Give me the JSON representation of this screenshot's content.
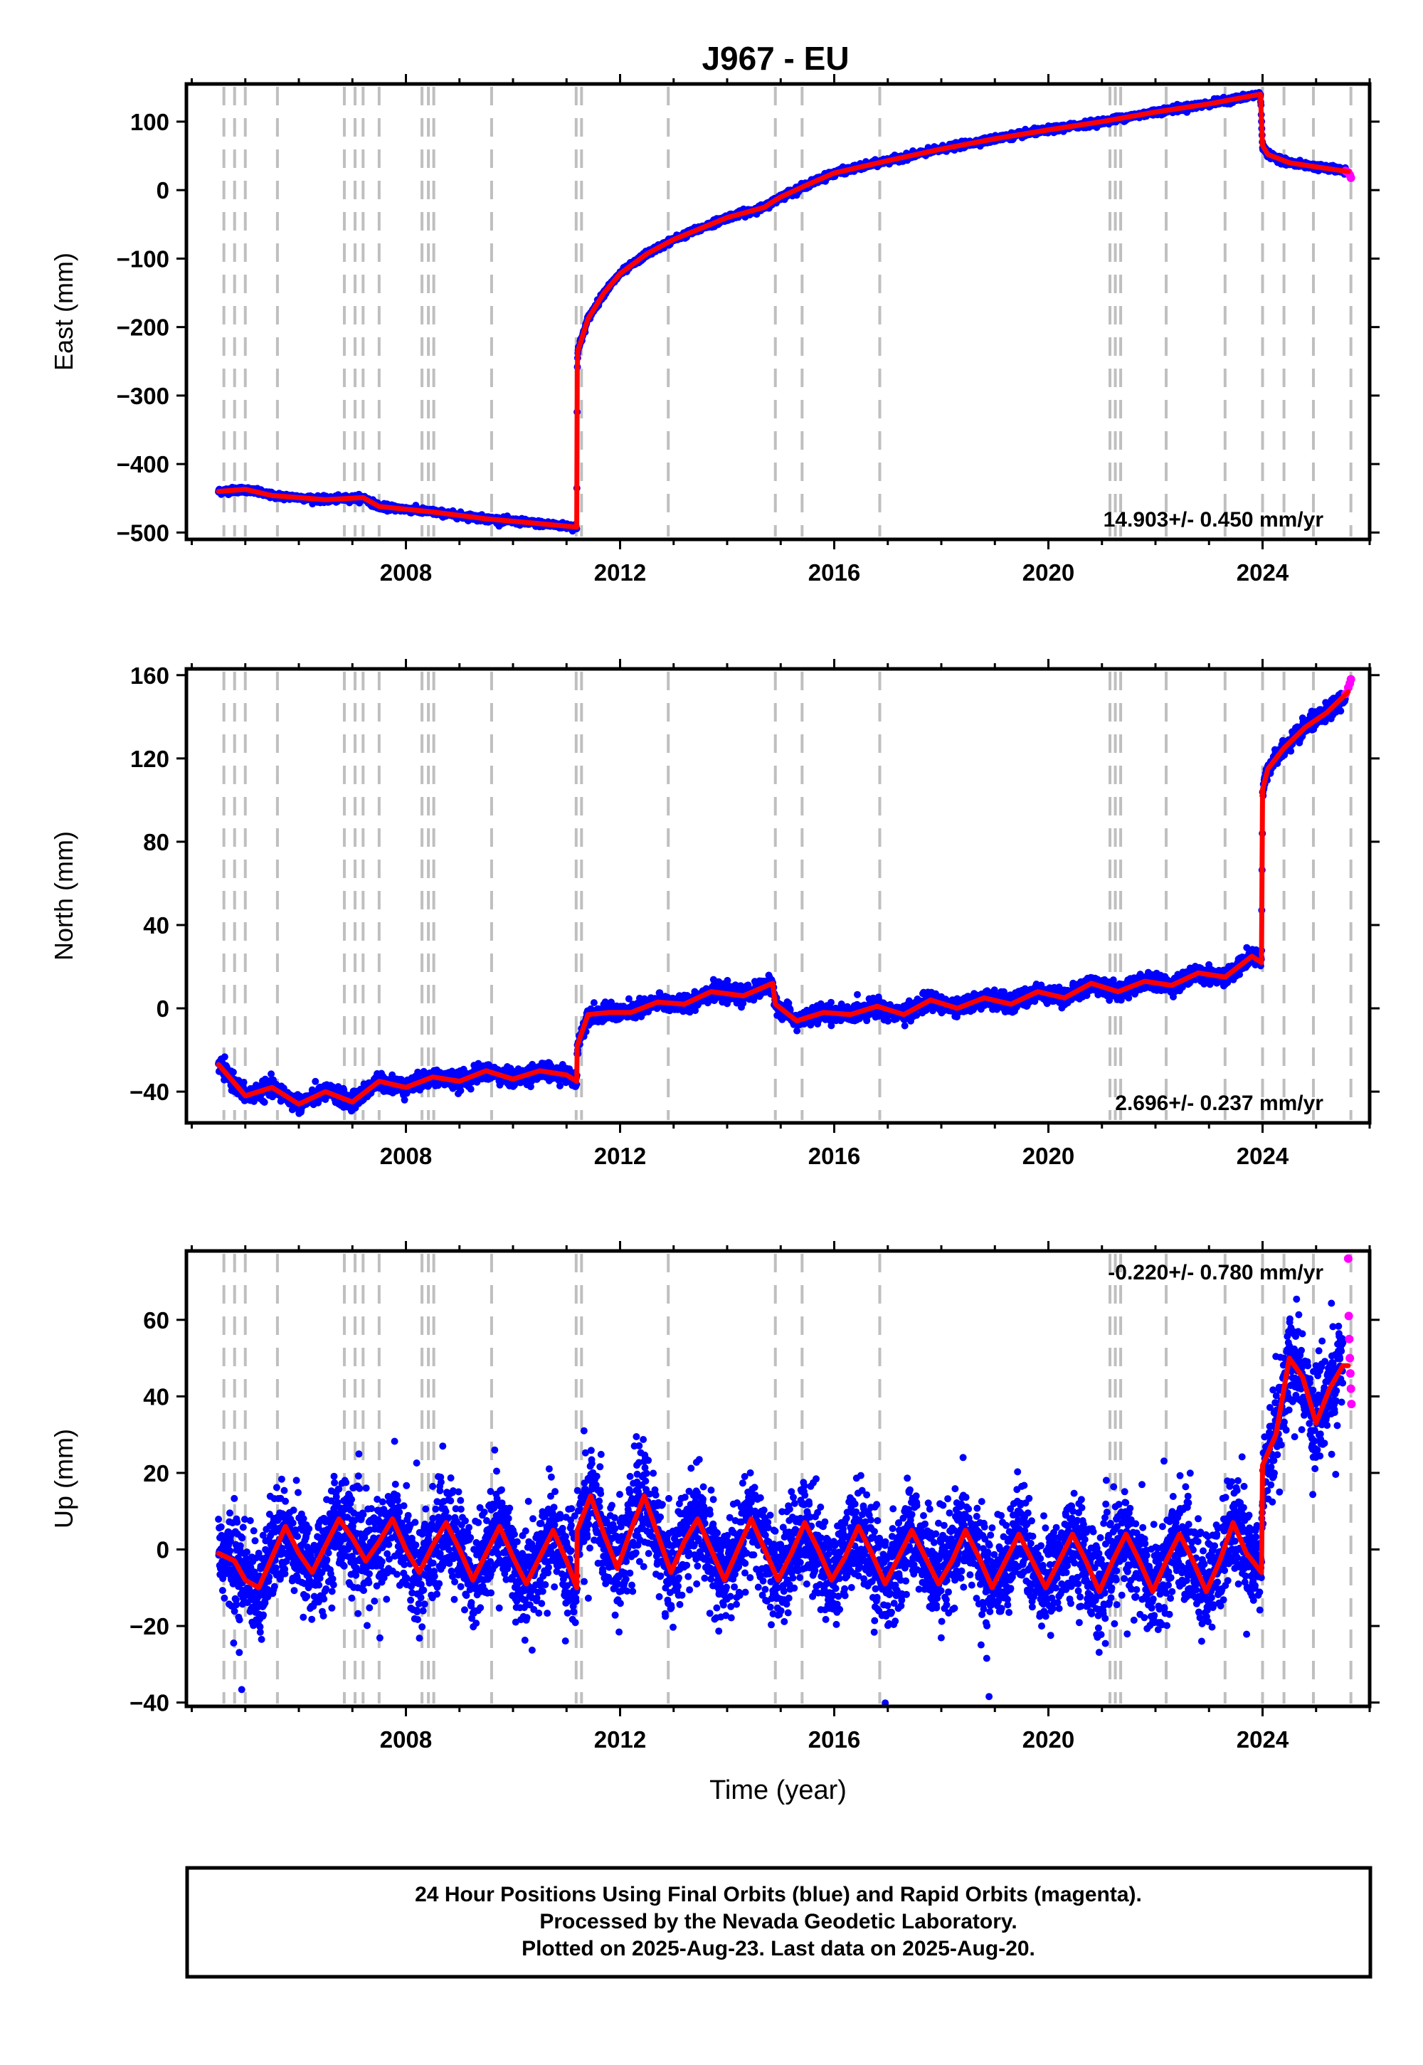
{
  "colors": {
    "final": "#0000ff",
    "rapid": "#ff00ff",
    "model": "#ff0000",
    "event_line": "#bfbfbf",
    "frame": "#000000"
  },
  "footer": {
    "line1": "24 Hour Positions Using Final Orbits (blue) and Rapid Orbits (magenta).",
    "line2": "Processed by the Nevada Geodetic Laboratory.",
    "line3": "Plotted on 2025-Aug-23. Last data on 2025-Aug-20."
  },
  "chart_data": [
    {
      "type": "scatter",
      "title": "J967 - EU",
      "ylabel": "East (mm)",
      "xlabel": "",
      "xlim": [
        2003.9,
        2026.0
      ],
      "ylim": [
        -510,
        155
      ],
      "xticks": [
        2008,
        2012,
        2016,
        2020,
        2024
      ],
      "xtick_labels": [
        "2008",
        "2012",
        "2016",
        "2020",
        "2024"
      ],
      "yticks": [
        -500,
        -400,
        -300,
        -200,
        -100,
        0,
        100
      ],
      "ytick_labels": [
        "−500",
        "−400",
        "−300",
        "−200",
        "−100",
        "0",
        "100"
      ],
      "rate_label": "14.903+/- 0.450 mm/yr",
      "event_lines": [
        2004.6,
        2004.8,
        2005.0,
        2005.6,
        2006.85,
        2007.05,
        2007.2,
        2007.5,
        2008.3,
        2008.42,
        2008.52,
        2009.6,
        2011.18,
        2011.28,
        2012.9,
        2014.9,
        2015.4,
        2016.85,
        2021.15,
        2021.25,
        2021.35,
        2022.2,
        2023.3,
        2024.0,
        2024.4,
        2024.95,
        2025.65
      ],
      "series": [
        {
          "role": "model",
          "x": [
            2004.5,
            2005.0,
            2005.5,
            2006.5,
            2007.2,
            2007.5,
            2008.5,
            2009.5,
            2010.5,
            2011.19,
            2011.2,
            2011.21,
            2011.4,
            2011.7,
            2012.0,
            2012.5,
            2013.0,
            2013.5,
            2014.0,
            2014.7,
            2014.85,
            2015.0,
            2015.5,
            2016.0,
            2017.0,
            2018.0,
            2019.0,
            2020.0,
            2021.0,
            2022.0,
            2023.0,
            2023.96,
            2024.0,
            2024.1,
            2024.5,
            2025.0,
            2025.6
          ],
          "y": [
            -440,
            -437,
            -446,
            -452,
            -449,
            -462,
            -470,
            -480,
            -487,
            -492,
            -265,
            -235,
            -188,
            -150,
            -122,
            -93,
            -72,
            -56,
            -40,
            -25,
            -17,
            -10,
            8,
            25,
            43,
            60,
            75,
            88,
            100,
            114,
            126,
            140,
            65,
            52,
            40,
            34,
            27
          ]
        },
        {
          "role": "final",
          "x": [
            2004.5,
            2005.0,
            2005.5,
            2006.5,
            2007.2,
            2007.5,
            2008.5,
            2009.5,
            2010.5,
            2011.19,
            2011.2,
            2011.21,
            2011.4,
            2011.7,
            2012.0,
            2012.5,
            2013.0,
            2013.5,
            2014.0,
            2014.7,
            2014.85,
            2015.0,
            2015.5,
            2016.0,
            2017.0,
            2018.0,
            2019.0,
            2020.0,
            2021.0,
            2022.0,
            2023.0,
            2023.96,
            2024.0,
            2024.1,
            2024.5,
            2025.0,
            2025.55
          ],
          "y": [
            -440,
            -437,
            -446,
            -452,
            -449,
            -462,
            -470,
            -480,
            -487,
            -492,
            -265,
            -235,
            -188,
            -150,
            -122,
            -93,
            -72,
            -56,
            -40,
            -25,
            -17,
            -10,
            8,
            25,
            43,
            60,
            75,
            88,
            100,
            114,
            126,
            140,
            65,
            52,
            40,
            34,
            28
          ]
        },
        {
          "role": "rapid",
          "x": [
            2025.55,
            2025.6,
            2025.63,
            2025.65
          ],
          "y": [
            28,
            26,
            22,
            18
          ]
        }
      ]
    },
    {
      "type": "scatter",
      "title": "",
      "ylabel": "North (mm)",
      "xlabel": "",
      "xlim": [
        2003.9,
        2026.0
      ],
      "ylim": [
        -55,
        163
      ],
      "xticks": [
        2008,
        2012,
        2016,
        2020,
        2024
      ],
      "xtick_labels": [
        "2008",
        "2012",
        "2016",
        "2020",
        "2024"
      ],
      "yticks": [
        -40,
        0,
        40,
        80,
        120,
        160
      ],
      "ytick_labels": [
        "−40",
        "0",
        "40",
        "80",
        "120",
        "160"
      ],
      "rate_label": "2.696+/- 0.237 mm/yr",
      "event_lines": [
        2004.6,
        2004.8,
        2005.0,
        2005.6,
        2006.85,
        2007.05,
        2007.2,
        2007.5,
        2008.3,
        2008.42,
        2008.52,
        2009.6,
        2011.18,
        2011.28,
        2012.9,
        2014.9,
        2015.4,
        2016.85,
        2021.15,
        2021.25,
        2021.35,
        2022.2,
        2023.3,
        2024.0,
        2024.4,
        2024.95,
        2025.65
      ],
      "series": [
        {
          "role": "model",
          "x": [
            2004.5,
            2004.6,
            2005.0,
            2005.5,
            2006.0,
            2006.5,
            2007.0,
            2007.5,
            2008.0,
            2008.5,
            2009.0,
            2009.5,
            2010.0,
            2010.5,
            2011.0,
            2011.19,
            2011.2,
            2011.4,
            2011.8,
            2012.2,
            2012.7,
            2013.2,
            2013.7,
            2014.3,
            2014.85,
            2014.9,
            2015.3,
            2015.8,
            2016.3,
            2016.8,
            2017.3,
            2017.8,
            2018.3,
            2018.8,
            2019.3,
            2019.8,
            2020.3,
            2020.8,
            2021.3,
            2021.8,
            2022.3,
            2022.8,
            2023.3,
            2023.8,
            2023.98,
            2024.0,
            2024.1,
            2024.4,
            2024.8,
            2025.2,
            2025.6
          ],
          "y": [
            -27,
            -30,
            -42,
            -38,
            -46,
            -40,
            -45,
            -35,
            -38,
            -33,
            -35,
            -30,
            -34,
            -30,
            -32,
            -35,
            -18,
            -3,
            -2,
            -2,
            3,
            2,
            8,
            6,
            12,
            2,
            -6,
            -2,
            -3,
            1,
            -3,
            4,
            0,
            5,
            2,
            8,
            5,
            12,
            8,
            13,
            11,
            17,
            15,
            25,
            22,
            105,
            115,
            125,
            135,
            142,
            152
          ]
        },
        {
          "role": "final",
          "x": [
            2004.5,
            2004.6,
            2005.0,
            2005.5,
            2006.0,
            2006.5,
            2007.0,
            2007.5,
            2008.0,
            2008.5,
            2009.0,
            2009.5,
            2010.0,
            2010.5,
            2011.0,
            2011.19,
            2011.2,
            2011.4,
            2011.8,
            2012.2,
            2012.7,
            2013.2,
            2013.7,
            2014.3,
            2014.85,
            2014.9,
            2015.3,
            2015.8,
            2016.3,
            2016.8,
            2017.3,
            2017.8,
            2018.3,
            2018.8,
            2019.3,
            2019.8,
            2020.3,
            2020.8,
            2021.3,
            2021.8,
            2022.3,
            2022.8,
            2023.3,
            2023.8,
            2023.98,
            2024.0,
            2024.1,
            2024.4,
            2024.8,
            2025.2,
            2025.55
          ],
          "y": [
            -27,
            -30,
            -42,
            -38,
            -46,
            -40,
            -45,
            -35,
            -38,
            -33,
            -35,
            -30,
            -34,
            -30,
            -32,
            -35,
            -18,
            -3,
            -2,
            -2,
            3,
            2,
            8,
            6,
            12,
            2,
            -6,
            -2,
            -3,
            1,
            -3,
            4,
            0,
            5,
            2,
            8,
            5,
            12,
            8,
            13,
            11,
            17,
            15,
            25,
            22,
            105,
            115,
            125,
            135,
            142,
            150
          ]
        },
        {
          "role": "rapid",
          "x": [
            2025.55,
            2025.6,
            2025.63,
            2025.65
          ],
          "y": [
            151,
            154,
            156,
            158
          ]
        }
      ]
    },
    {
      "type": "scatter",
      "title": "",
      "ylabel": "Up (mm)",
      "xlabel": "Time (year)",
      "xlim": [
        2003.9,
        2026.0
      ],
      "ylim": [
        -41,
        78
      ],
      "xticks": [
        2008,
        2012,
        2016,
        2020,
        2024
      ],
      "xtick_labels": [
        "2008",
        "2012",
        "2016",
        "2020",
        "2024"
      ],
      "yticks": [
        -40,
        -20,
        0,
        20,
        40,
        60
      ],
      "ytick_labels": [
        "−40",
        "−20",
        "0",
        "20",
        "40",
        "60"
      ],
      "rate_label": "-0.220+/- 0.780 mm/yr",
      "event_lines": [
        2004.6,
        2004.8,
        2005.0,
        2005.6,
        2006.85,
        2007.05,
        2007.2,
        2007.5,
        2008.3,
        2008.42,
        2008.52,
        2009.6,
        2011.18,
        2011.28,
        2012.9,
        2014.9,
        2015.4,
        2016.85,
        2021.15,
        2021.25,
        2021.35,
        2022.2,
        2023.3,
        2024.0,
        2024.4,
        2024.95,
        2025.65
      ],
      "series": [
        {
          "role": "model",
          "x": [
            2004.5,
            2004.8,
            2005.0,
            2005.25,
            2005.5,
            2005.75,
            2006.0,
            2006.25,
            2006.5,
            2006.75,
            2007.0,
            2007.25,
            2007.5,
            2007.75,
            2008.0,
            2008.25,
            2008.5,
            2008.75,
            2009.0,
            2009.25,
            2009.5,
            2009.75,
            2010.0,
            2010.25,
            2010.5,
            2010.75,
            2011.0,
            2011.19,
            2011.2,
            2011.45,
            2011.7,
            2011.95,
            2012.2,
            2012.45,
            2012.7,
            2012.95,
            2013.2,
            2013.45,
            2013.7,
            2013.95,
            2014.2,
            2014.45,
            2014.7,
            2014.95,
            2015.2,
            2015.45,
            2015.7,
            2015.95,
            2016.2,
            2016.45,
            2016.7,
            2016.95,
            2017.2,
            2017.45,
            2017.7,
            2017.95,
            2018.2,
            2018.45,
            2018.7,
            2018.95,
            2019.2,
            2019.45,
            2019.7,
            2019.95,
            2020.2,
            2020.45,
            2020.7,
            2020.95,
            2021.2,
            2021.45,
            2021.7,
            2021.95,
            2022.2,
            2022.45,
            2022.7,
            2022.95,
            2023.2,
            2023.45,
            2023.7,
            2023.98,
            2024.0,
            2024.25,
            2024.5,
            2024.75,
            2025.0,
            2025.25,
            2025.5,
            2025.6
          ],
          "y": [
            -1,
            -3,
            -8,
            -10,
            -2,
            6,
            -1,
            -6,
            1,
            8,
            3,
            -3,
            2,
            8,
            0,
            -6,
            1,
            7,
            0,
            -8,
            -1,
            6,
            -2,
            -9,
            -2,
            5,
            -3,
            -10,
            5,
            14,
            4,
            -5,
            5,
            14,
            4,
            -6,
            2,
            8,
            0,
            -8,
            0,
            8,
            0,
            -8,
            -1,
            7,
            0,
            -8,
            -2,
            6,
            -1,
            -9,
            -2,
            5,
            -2,
            -9,
            -3,
            5,
            -2,
            -10,
            -3,
            4,
            -3,
            -10,
            -3,
            4,
            -3,
            -11,
            -3,
            4,
            -3,
            -11,
            -3,
            4,
            -3,
            -11,
            -3,
            7,
            -1,
            -6,
            22,
            30,
            50,
            45,
            33,
            42,
            48,
            48
          ]
        },
        {
          "role": "final",
          "x": [
            2004.5,
            2004.8,
            2005.0,
            2005.25,
            2005.5,
            2005.75,
            2006.0,
            2006.25,
            2006.5,
            2006.75,
            2007.0,
            2007.25,
            2007.5,
            2007.75,
            2008.0,
            2008.25,
            2008.5,
            2008.75,
            2009.0,
            2009.25,
            2009.5,
            2009.75,
            2010.0,
            2010.25,
            2010.5,
            2010.75,
            2011.0,
            2011.19,
            2011.2,
            2011.45,
            2011.7,
            2011.95,
            2012.2,
            2012.45,
            2012.7,
            2012.95,
            2013.2,
            2013.45,
            2013.7,
            2013.95,
            2014.2,
            2014.45,
            2014.7,
            2014.95,
            2015.2,
            2015.45,
            2015.7,
            2015.95,
            2016.2,
            2016.45,
            2016.7,
            2016.95,
            2017.2,
            2017.45,
            2017.7,
            2017.95,
            2018.2,
            2018.45,
            2018.7,
            2018.95,
            2019.2,
            2019.45,
            2019.7,
            2019.95,
            2020.2,
            2020.45,
            2020.7,
            2020.95,
            2021.2,
            2021.45,
            2021.7,
            2021.95,
            2022.2,
            2022.45,
            2022.7,
            2022.95,
            2023.2,
            2023.45,
            2023.7,
            2023.98,
            2024.0,
            2024.25,
            2024.5,
            2024.75,
            2025.0,
            2025.25,
            2025.5
          ],
          "y": [
            -1,
            -3,
            -8,
            -10,
            -2,
            6,
            -1,
            -6,
            1,
            8,
            3,
            -3,
            2,
            8,
            0,
            -6,
            1,
            7,
            0,
            -8,
            -1,
            6,
            -2,
            -9,
            -2,
            5,
            -3,
            -10,
            5,
            14,
            4,
            -5,
            5,
            14,
            4,
            -6,
            2,
            8,
            0,
            -8,
            0,
            8,
            0,
            -8,
            -1,
            7,
            0,
            -8,
            -2,
            6,
            -1,
            -9,
            -2,
            5,
            -2,
            -9,
            -3,
            5,
            -2,
            -10,
            -3,
            4,
            -3,
            -10,
            -3,
            4,
            -3,
            -11,
            -3,
            4,
            -3,
            -11,
            -3,
            4,
            -3,
            -11,
            -3,
            7,
            -1,
            -6,
            22,
            30,
            50,
            45,
            33,
            42,
            48
          ]
        },
        {
          "role": "rapid",
          "x": [
            2025.6,
            2025.61,
            2025.62,
            2025.63,
            2025.64,
            2025.65,
            2025.66
          ],
          "y": [
            76,
            61,
            55,
            50,
            46,
            42,
            38
          ]
        }
      ]
    }
  ]
}
